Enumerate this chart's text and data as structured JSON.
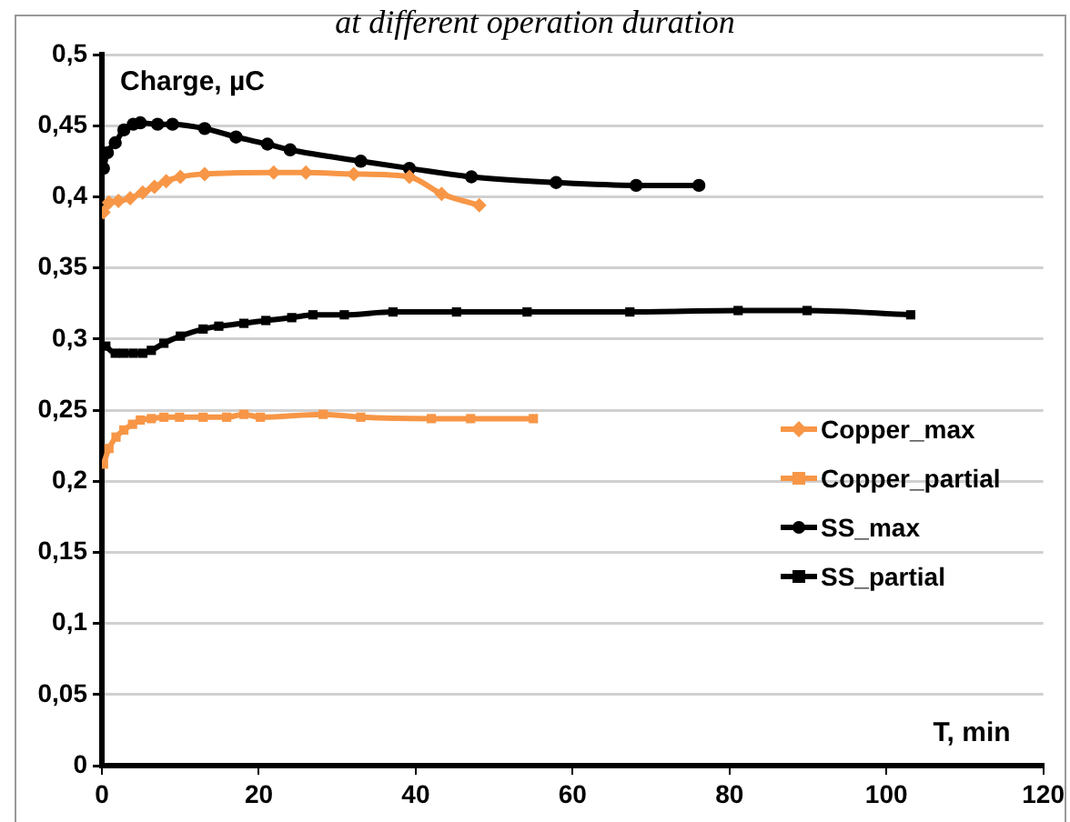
{
  "chart_data": {
    "type": "line",
    "title": "at different operation duration",
    "xlabel": "T, min",
    "ylabel": "Charge, µC",
    "xlim": [
      0,
      120
    ],
    "xticks": [
      0,
      20,
      40,
      60,
      80,
      100,
      120
    ],
    "ylim": [
      0,
      0.5
    ],
    "yticks": [
      0,
      {
        "value": 0.05,
        "label": "0,05"
      },
      {
        "value": 0.1,
        "label": "0,1"
      },
      {
        "value": 0.15,
        "label": "0,15"
      },
      {
        "value": 0.2,
        "label": "0,2"
      },
      {
        "value": 0.25,
        "label": "0,25"
      },
      {
        "value": 0.3,
        "label": "0,3"
      },
      {
        "value": 0.35,
        "label": "0,35"
      },
      {
        "value": 0.4,
        "label": "0,4"
      },
      {
        "value": 0.45,
        "label": "0,45"
      },
      {
        "value": 0.5,
        "label": "0,5"
      }
    ],
    "grid": "y",
    "legend": "right",
    "line_style": "solid",
    "series": [
      {
        "name": "Copper_max",
        "color": "#f79646",
        "marker": "diamond",
        "x": [
          0.2,
          0.9,
          2.1,
          3.6,
          5.2,
          6.7,
          8.2,
          10,
          13.1,
          21.9,
          26,
          32.1,
          39.2,
          43.3,
          48.1
        ],
        "values": [
          0.389,
          0.396,
          0.397,
          0.399,
          0.403,
          0.407,
          0.411,
          0.414,
          0.416,
          0.417,
          0.417,
          0.416,
          0.414,
          0.402,
          0.394
        ]
      },
      {
        "name": "Copper_partial",
        "color": "#f79646",
        "marker": "square",
        "x": [
          0.2,
          0.9,
          1.8,
          2.8,
          3.9,
          4.9,
          6.3,
          7.9,
          9.9,
          12.9,
          15.9,
          18.1,
          20.2,
          28.2,
          33,
          42,
          47,
          55
        ],
        "values": [
          0.212,
          0.223,
          0.231,
          0.236,
          0.24,
          0.243,
          0.244,
          0.245,
          0.245,
          0.245,
          0.245,
          0.247,
          0.245,
          0.247,
          0.245,
          0.244,
          0.244,
          0.244
        ]
      },
      {
        "name": "SS_max",
        "color": "#000000",
        "marker": "circle",
        "x": [
          0.2,
          0.7,
          1.7,
          2.8,
          4,
          4.9,
          7.1,
          9,
          13.1,
          17.1,
          21.1,
          24,
          33,
          39.2,
          47.1,
          57.9,
          68.1,
          76.1
        ],
        "values": [
          0.42,
          0.431,
          0.438,
          0.447,
          0.451,
          0.452,
          0.451,
          0.451,
          0.448,
          0.442,
          0.437,
          0.433,
          0.425,
          0.42,
          0.414,
          0.41,
          0.408,
          0.408
        ]
      },
      {
        "name": "SS_partial",
        "color": "#000000",
        "marker": "square",
        "x": [
          0.5,
          1.7,
          2.8,
          4,
          5.2,
          6.3,
          7.9,
          10,
          12.9,
          14.9,
          18.1,
          20.9,
          24.2,
          26.9,
          30.9,
          37.1,
          45.2,
          54.2,
          67.3,
          81.1,
          89.9,
          103.1
        ],
        "values": [
          0.295,
          0.29,
          0.29,
          0.29,
          0.29,
          0.292,
          0.297,
          0.302,
          0.307,
          0.309,
          0.311,
          0.313,
          0.315,
          0.317,
          0.317,
          0.319,
          0.319,
          0.319,
          0.319,
          0.32,
          0.32,
          0.317
        ]
      }
    ]
  }
}
